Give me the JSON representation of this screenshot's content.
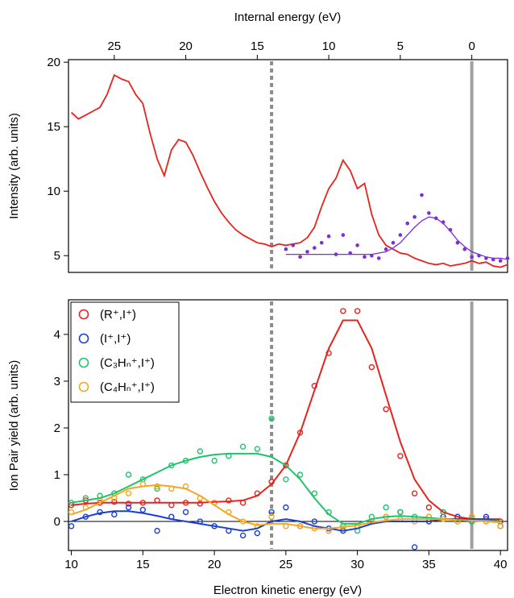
{
  "chart_data": [
    {
      "type": "line",
      "x2label": "Internal energy (eV)",
      "ylabel": "Intensity (arb. units)",
      "xlim": [
        9.8,
        40.5
      ],
      "x2lim": [
        28.2,
        -2.5
      ],
      "x2ticks": [
        25,
        20,
        15,
        10,
        5,
        0
      ],
      "ylim": [
        3.7,
        20.2
      ],
      "yticks": [
        5,
        10,
        15,
        20
      ],
      "reference_lines": [
        {
          "x": 24,
          "style": "dashed",
          "color": "#8c8c8c"
        },
        {
          "x": 38,
          "style": "solid",
          "color": "#a0a0a0"
        }
      ],
      "series": [
        {
          "mode": "line",
          "color": "#e8231e",
          "x": [
            10,
            10.5,
            11,
            11.5,
            12,
            12.5,
            13,
            13.5,
            14,
            14.5,
            15,
            15.5,
            16,
            16.5,
            17,
            17.5,
            18,
            18.5,
            19,
            19.5,
            20,
            20.5,
            21,
            21.5,
            22,
            22.5,
            23,
            23.5,
            24,
            24.5,
            25,
            25.5,
            26,
            26.5,
            27,
            27.5,
            28,
            28.5,
            29,
            29.5,
            30,
            30.5,
            31,
            31.5,
            32,
            32.5,
            33,
            33.5,
            34,
            34.5,
            35,
            35.5,
            36,
            36.5,
            37,
            37.5,
            38,
            38.5,
            39,
            39.5,
            40,
            40.5
          ],
          "values": [
            16.1,
            15.6,
            15.9,
            16.2,
            16.5,
            17.5,
            19.0,
            18.7,
            18.5,
            17.5,
            16.8,
            14.5,
            12.5,
            11.2,
            13.2,
            14.0,
            13.8,
            12.8,
            11.5,
            10.3,
            9.2,
            8.3,
            7.6,
            7.0,
            6.6,
            6.3,
            6.0,
            5.9,
            5.7,
            5.9,
            5.8,
            5.9,
            6.0,
            6.4,
            7.2,
            8.8,
            10.2,
            11.0,
            12.4,
            11.6,
            10.2,
            10.6,
            8.2,
            6.6,
            5.8,
            5.5,
            5.2,
            5.1,
            4.8,
            4.6,
            4.4,
            4.3,
            4.4,
            4.2,
            4.3,
            4.4,
            4.6,
            4.4,
            4.5,
            4.2,
            4.1,
            4.3
          ]
        },
        {
          "mode": "markers",
          "color": "#7b2fd6",
          "x": [
            25,
            25.5,
            26,
            26.5,
            27,
            27.5,
            28,
            28.5,
            29,
            29.5,
            30,
            30.5,
            31,
            31.5,
            32,
            32.5,
            33,
            33.5,
            34,
            34.5,
            35,
            35.5,
            36,
            36.5,
            37,
            37.5,
            38,
            38.5,
            39,
            39.5,
            40,
            40.5
          ],
          "values": [
            5.5,
            5.8,
            4.9,
            5.3,
            5.6,
            6.0,
            6.5,
            5.1,
            6.6,
            5.2,
            5.8,
            4.9,
            5.0,
            4.8,
            5.5,
            6.0,
            6.6,
            7.5,
            8.0,
            9.7,
            8.3,
            7.9,
            7.6,
            7.0,
            6.0,
            5.5,
            4.9,
            5.0,
            4.8,
            4.7,
            4.6,
            4.8
          ]
        },
        {
          "mode": "line",
          "color": "#7b2fd6",
          "x": [
            25,
            26,
            27,
            28,
            29,
            30,
            31,
            31.5,
            32,
            32.5,
            33,
            33.5,
            34,
            34.5,
            35,
            35.5,
            36,
            36.5,
            37,
            37.5,
            38,
            38.5,
            39,
            39.5,
            40,
            40.5
          ],
          "values": [
            5.1,
            5.1,
            5.1,
            5.1,
            5.1,
            5.1,
            5.1,
            5.2,
            5.3,
            5.6,
            6.0,
            6.6,
            7.2,
            7.7,
            8.0,
            7.9,
            7.5,
            6.9,
            6.2,
            5.7,
            5.3,
            5.1,
            4.9,
            4.8,
            4.8,
            4.7
          ]
        }
      ]
    },
    {
      "type": "scatter",
      "xlabel": "Electron kinetic energy (eV)",
      "ylabel": "Ion Pair yield (arb. units)",
      "xlim": [
        9.8,
        40.5
      ],
      "xticks": [
        10,
        15,
        20,
        25,
        30,
        35,
        40
      ],
      "ylim": [
        -0.62,
        4.74
      ],
      "yticks": [
        0,
        1,
        2,
        3,
        4
      ],
      "hline": 0,
      "legend": "upper left",
      "reference_lines": [
        {
          "x": 24,
          "style": "dashed",
          "color": "#8c8c8c"
        },
        {
          "x": 38,
          "style": "solid",
          "color": "#a0a0a0"
        }
      ],
      "x": [
        10,
        11,
        12,
        13,
        14,
        15,
        16,
        17,
        18,
        19,
        20,
        21,
        22,
        23,
        24,
        25,
        26,
        27,
        28,
        29,
        30,
        31,
        32,
        33,
        34,
        35,
        36,
        37,
        38,
        39,
        40
      ],
      "series": [
        {
          "name": "(R⁺,I⁺)",
          "color": "#e8231e",
          "values": [
            0.35,
            0.45,
            0.4,
            0.42,
            0.38,
            0.4,
            0.45,
            0.35,
            0.4,
            0.38,
            0.4,
            0.45,
            0.4,
            0.6,
            0.85,
            1.2,
            1.9,
            2.9,
            3.6,
            4.5,
            4.5,
            3.3,
            2.4,
            1.4,
            0.6,
            0.3,
            0.2,
            0.1,
            0.1,
            0.05,
            0.0
          ],
          "fit": [
            0.35,
            0.38,
            0.4,
            0.4,
            0.4,
            0.4,
            0.4,
            0.4,
            0.4,
            0.4,
            0.42,
            0.43,
            0.45,
            0.55,
            0.8,
            1.2,
            1.9,
            2.8,
            3.7,
            4.3,
            4.3,
            3.7,
            2.7,
            1.7,
            0.9,
            0.45,
            0.2,
            0.1,
            0.05,
            0.05,
            0.05
          ]
        },
        {
          "name": "(I⁺,I⁺)",
          "color": "#1a3fd6",
          "values": [
            -0.1,
            0.1,
            0.2,
            0.15,
            0.3,
            0.25,
            -0.2,
            0.1,
            0.2,
            0.0,
            -0.1,
            -0.2,
            -0.3,
            -0.25,
            0.2,
            0.3,
            -0.1,
            0.0,
            -0.15,
            -0.2,
            -0.1,
            0.0,
            0.1,
            0.2,
            -0.55,
            0.0,
            0.1,
            0.1,
            0.0,
            0.1,
            -0.1
          ],
          "fit": [
            0.0,
            0.1,
            0.18,
            0.22,
            0.22,
            0.18,
            0.12,
            0.05,
            0.0,
            -0.05,
            -0.1,
            -0.15,
            -0.2,
            -0.15,
            0.0,
            0.05,
            0.0,
            -0.1,
            -0.15,
            -0.2,
            -0.15,
            -0.05,
            0.0,
            0.0,
            0.0,
            0.0,
            0.05,
            0.05,
            0.05,
            0.05,
            0.0
          ]
        },
        {
          "name": "(C₃Hₙ⁺,I⁺)",
          "color": "#1fc46a",
          "values": [
            0.4,
            0.5,
            0.55,
            0.6,
            1.0,
            0.9,
            0.7,
            1.2,
            1.3,
            1.5,
            1.3,
            1.4,
            1.6,
            1.55,
            2.2,
            0.9,
            1.0,
            0.6,
            0.2,
            -0.1,
            -0.2,
            0.1,
            0.3,
            0.2,
            0.1,
            0.1,
            0.2,
            0.0,
            0.0,
            0.0,
            -0.1
          ],
          "fit": [
            0.4,
            0.45,
            0.5,
            0.6,
            0.75,
            0.9,
            1.05,
            1.2,
            1.3,
            1.38,
            1.43,
            1.45,
            1.45,
            1.45,
            1.38,
            1.2,
            0.9,
            0.5,
            0.15,
            -0.05,
            -0.05,
            0.05,
            0.1,
            0.12,
            0.1,
            0.08,
            0.05,
            0.03,
            0.02,
            0.02,
            0.0
          ]
        },
        {
          "name": "(C₄Hₙ⁺,I⁺)",
          "color": "#f5a623",
          "values": [
            0.2,
            0.3,
            0.45,
            0.5,
            0.6,
            0.8,
            0.75,
            0.7,
            0.75,
            0.5,
            0.4,
            0.2,
            0.0,
            -0.1,
            0.1,
            -0.1,
            -0.1,
            -0.15,
            -0.2,
            -0.15,
            -0.1,
            0.0,
            0.1,
            0.05,
            0.0,
            0.1,
            0.05,
            0.0,
            0.1,
            0.0,
            -0.1
          ],
          "fit": [
            0.15,
            0.25,
            0.4,
            0.55,
            0.7,
            0.75,
            0.78,
            0.75,
            0.7,
            0.55,
            0.35,
            0.15,
            0.0,
            -0.08,
            -0.05,
            -0.05,
            -0.1,
            -0.15,
            -0.15,
            -0.12,
            -0.08,
            -0.02,
            0.02,
            0.05,
            0.05,
            0.05,
            0.05,
            0.03,
            0.02,
            0.0,
            -0.02
          ]
        }
      ]
    }
  ]
}
